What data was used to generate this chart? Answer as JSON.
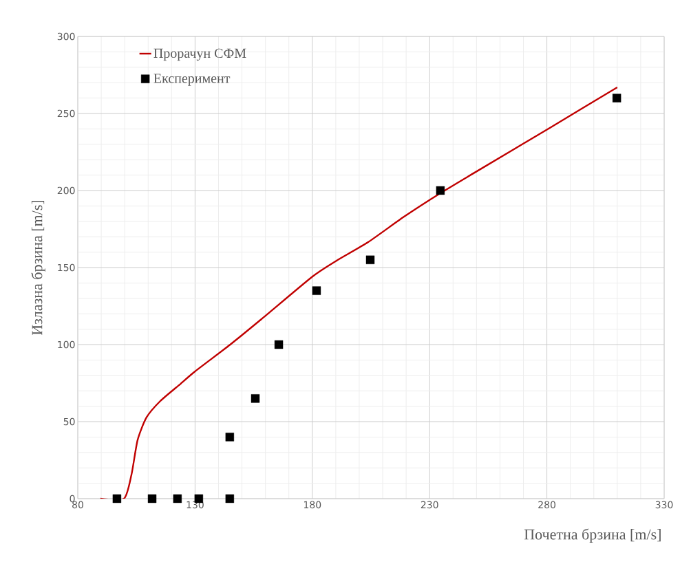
{
  "chart_data": {
    "type": "scatter",
    "xlabel": "Почетна брзина [m/s]",
    "ylabel": "Излазна брзина [m/s]",
    "xlim": [
      80,
      330
    ],
    "ylim": [
      0,
      300
    ],
    "xticks": [
      80,
      130,
      180,
      230,
      280,
      330
    ],
    "yticks": [
      0,
      50,
      100,
      150,
      200,
      250,
      300
    ],
    "grid": true,
    "legend": "top left",
    "series": [
      {
        "name": "Прорачун СФМ",
        "type": "line",
        "color": "#c00000",
        "marker": "none",
        "x": [
          89.6,
          99.7,
          102.9,
          105.5,
          109.3,
          115.2,
          123.1,
          130,
          145,
          158.3,
          180.1,
          190.9,
          203.8,
          219.1,
          234.3,
          249.6,
          281.6,
          310
        ],
        "values": [
          0,
          0,
          15.6,
          38,
          52.7,
          63.4,
          73.6,
          82.6,
          100,
          116.5,
          144.2,
          155,
          166.5,
          183,
          198,
          212,
          241,
          267
        ]
      },
      {
        "name": "Експеримент",
        "type": "scatter",
        "color": "#000000",
        "marker": "square",
        "x": [
          96.7,
          111.7,
          122.5,
          131.6,
          144.8,
          144.8,
          155.7,
          165.7,
          181.8,
          204.7,
          234.6,
          309.8
        ],
        "values": [
          0,
          0,
          0,
          0,
          0,
          40,
          65,
          100,
          135,
          155,
          200,
          260
        ]
      }
    ]
  }
}
